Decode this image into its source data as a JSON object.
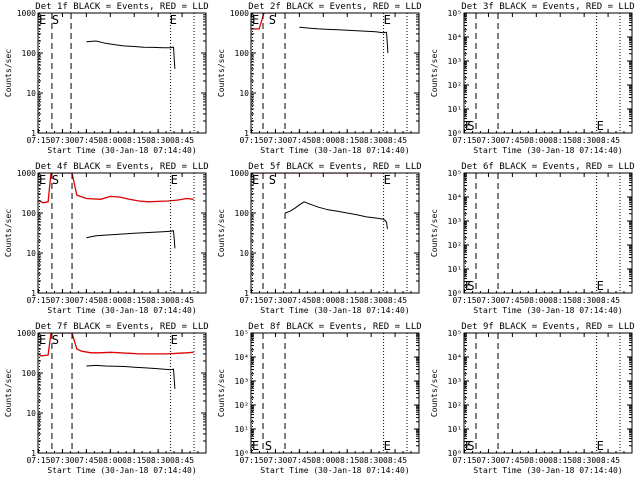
{
  "figure": {
    "background": "#ffffff",
    "events_color": "#000000",
    "lld_color": "#e00000"
  },
  "chart_data": [
    {
      "type": "line",
      "title": "Det 1f BLACK = Events, RED = LLD",
      "xlabel": "Start Time (30-Jan-18 07:14:40)",
      "ylabel": "Counts/sec",
      "xlim": [
        7.2444,
        9.0
      ],
      "ylim": [
        1,
        1000
      ],
      "yscale": "log",
      "xticks": [
        "07:15",
        "07:30",
        "07:45",
        "08:00",
        "08:15",
        "08:30",
        "08:45"
      ],
      "yticks": [
        "1",
        "10",
        "100",
        "1000"
      ],
      "ytick_values": [
        1,
        10,
        100,
        1000
      ],
      "marker_labels": [
        "E",
        "S",
        "E"
      ],
      "marker_x": [
        7.255,
        7.39,
        8.62
      ],
      "dashed_lines": [
        7.39,
        7.59
      ],
      "dotted_lines": [
        7.26,
        8.63,
        8.875
      ],
      "series": [
        {
          "name": "Events",
          "color": "#000000",
          "x": [
            7.75,
            7.85,
            7.95,
            8.05,
            8.15,
            8.25,
            8.35,
            8.45,
            8.55,
            8.63,
            8.66,
            8.67,
            8.675
          ],
          "y": [
            190,
            200,
            175,
            160,
            150,
            145,
            140,
            138,
            135,
            135,
            140,
            60,
            40
          ]
        }
      ]
    },
    {
      "type": "line",
      "title": "Det 2f BLACK = Events, RED = LLD",
      "xlabel": "Start Time (30-Jan-18 07:14:40)",
      "ylabel": "Counts/sec",
      "xlim": [
        7.2444,
        9.0
      ],
      "ylim": [
        1,
        1000
      ],
      "yscale": "log",
      "xticks": [
        "07:15",
        "07:30",
        "07:45",
        "08:00",
        "08:15",
        "08:30",
        "08:45"
      ],
      "yticks": [
        "1",
        "10",
        "100",
        "1000"
      ],
      "ytick_values": [
        1,
        10,
        100,
        1000
      ],
      "marker_labels": [
        "E",
        "S",
        "E"
      ],
      "marker_x": [
        7.255,
        7.43,
        8.63
      ],
      "dashed_lines": [
        7.37,
        7.6
      ],
      "dotted_lines": [
        7.26,
        8.63,
        8.875
      ],
      "series": [
        {
          "name": "LLD",
          "color": "#e00000",
          "x": [
            7.26,
            7.33,
            7.38,
            7.39,
            7.42,
            7.47,
            7.49,
            7.55,
            7.7,
            7.9,
            8.1,
            8.3,
            8.5,
            8.7,
            8.87
          ],
          "y": [
            400,
            400,
            1000,
            1000,
            1000,
            1000,
            1200,
            1250,
            1300,
            1250,
            1250,
            1200,
            1200,
            1200,
            1250
          ]
        },
        {
          "name": "Events",
          "color": "#000000",
          "x": [
            7.75,
            7.85,
            7.95,
            8.05,
            8.15,
            8.25,
            8.35,
            8.45,
            8.55,
            8.63,
            8.66,
            8.67,
            8.675
          ],
          "y": [
            440,
            420,
            400,
            390,
            380,
            370,
            360,
            350,
            340,
            320,
            330,
            160,
            100
          ]
        }
      ]
    },
    {
      "type": "line",
      "title": "Det 3f BLACK = Events, RED = LLD",
      "xlabel": "Start Time (30-Jan-18 07:14:40)",
      "ylabel": "Counts/sec",
      "xlim": [
        7.2444,
        9.0
      ],
      "ylim": [
        1,
        100000
      ],
      "yscale": "log",
      "xticks": [
        "07:15",
        "07:30",
        "07:45",
        "08:00",
        "08:15",
        "08:30",
        "08:45"
      ],
      "yticks": [
        "10⁰",
        "10¹",
        "10²",
        "10³",
        "10⁴",
        "10⁵"
      ],
      "ytick_values": [
        1,
        10,
        100,
        1000,
        10000,
        100000
      ],
      "marker_labels": [
        "E",
        "S",
        "E"
      ],
      "marker_x": [
        7.255,
        7.28,
        8.63
      ],
      "dashed_lines": [
        7.37,
        7.6
      ],
      "dotted_lines": [
        7.26,
        8.63,
        8.875
      ],
      "series": []
    },
    {
      "type": "line",
      "title": "Det 4f BLACK = Events, RED = LLD",
      "xlabel": "Start Time (30-Jan-18 07:14:40)",
      "ylabel": "Counts/sec",
      "xlim": [
        7.2444,
        9.0
      ],
      "ylim": [
        1,
        1000
      ],
      "yscale": "log",
      "xticks": [
        "07:15",
        "07:30",
        "07:45",
        "08:00",
        "08:15",
        "08:30",
        "08:45"
      ],
      "yticks": [
        "1",
        "10",
        "100",
        "1000"
      ],
      "ytick_values": [
        1,
        10,
        100,
        1000
      ],
      "marker_labels": [
        "E",
        "S",
        "E"
      ],
      "marker_x": [
        7.255,
        7.39,
        8.63
      ],
      "dashed_lines": [
        7.39,
        7.6
      ],
      "dotted_lines": [
        7.26,
        8.63,
        8.875
      ],
      "series": [
        {
          "name": "LLD",
          "color": "#e00000",
          "x": [
            7.26,
            7.3,
            7.35,
            7.38,
            7.4,
            7.45,
            7.55,
            7.6,
            7.65,
            7.75,
            7.9,
            8.0,
            8.1,
            8.2,
            8.3,
            8.4,
            8.5,
            8.6,
            8.7,
            8.8,
            8.87
          ],
          "y": [
            200,
            180,
            190,
            1000,
            1000,
            1000,
            1000,
            1000,
            280,
            230,
            220,
            260,
            250,
            220,
            200,
            190,
            195,
            200,
            210,
            230,
            220
          ]
        },
        {
          "name": "Events",
          "color": "#000000",
          "x": [
            7.75,
            7.85,
            7.95,
            8.05,
            8.15,
            8.25,
            8.35,
            8.45,
            8.55,
            8.63,
            8.66,
            8.67,
            8.675
          ],
          "y": [
            24,
            27,
            28,
            29,
            30,
            31,
            32,
            33,
            34,
            35,
            36,
            20,
            13
          ]
        }
      ]
    },
    {
      "type": "line",
      "title": "Det 5f BLACK = Events, RED = LLD",
      "xlabel": "Start Time (30-Jan-18 07:14:40)",
      "ylabel": "Counts/sec",
      "xlim": [
        7.2444,
        9.0
      ],
      "ylim": [
        1,
        1000
      ],
      "yscale": "log",
      "xticks": [
        "07:15",
        "07:30",
        "07:45",
        "08:00",
        "08:15",
        "08:30",
        "08:45"
      ],
      "yticks": [
        "1",
        "10",
        "100",
        "1000"
      ],
      "ytick_values": [
        1,
        10,
        100,
        1000
      ],
      "marker_labels": [
        "E",
        "S",
        "E"
      ],
      "marker_x": [
        7.255,
        7.43,
        8.63
      ],
      "dashed_lines": [
        7.37,
        7.6
      ],
      "dotted_lines": [
        7.26,
        8.63,
        8.875
      ],
      "series": [
        {
          "name": "LLD",
          "color": "#e00000",
          "x": [
            7.26,
            7.5,
            7.75,
            8.0,
            8.25,
            8.5,
            8.7,
            8.87
          ],
          "y": [
            1000,
            1000,
            1000,
            1000,
            1000,
            1000,
            1000,
            1100
          ]
        },
        {
          "name": "Events",
          "color": "#000000",
          "x": [
            7.6,
            7.65,
            7.7,
            7.75,
            7.8,
            7.85,
            7.95,
            8.05,
            8.15,
            8.25,
            8.35,
            8.45,
            8.55,
            8.63,
            8.66,
            8.67
          ],
          "y": [
            100,
            110,
            130,
            160,
            190,
            170,
            140,
            120,
            110,
            100,
            90,
            80,
            75,
            70,
            60,
            40
          ]
        }
      ]
    },
    {
      "type": "line",
      "title": "Det 6f BLACK = Events, RED = LLD",
      "xlabel": "Start Time (30-Jan-18 07:14:40)",
      "ylabel": "Counts/sec",
      "xlim": [
        7.2444,
        9.0
      ],
      "ylim": [
        1,
        100000
      ],
      "yscale": "log",
      "xticks": [
        "07:15",
        "07:30",
        "07:45",
        "08:00",
        "08:15",
        "08:30",
        "08:45"
      ],
      "yticks": [
        "10⁰",
        "10¹",
        "10²",
        "10³",
        "10⁴",
        "10⁵"
      ],
      "ytick_values": [
        1,
        10,
        100,
        1000,
        10000,
        100000
      ],
      "marker_labels": [
        "E",
        "S",
        "E"
      ],
      "marker_x": [
        7.255,
        7.28,
        8.63
      ],
      "dashed_lines": [
        7.37,
        7.6
      ],
      "dotted_lines": [
        7.26,
        8.63,
        8.875
      ],
      "series": []
    },
    {
      "type": "line",
      "title": "Det 7f BLACK = Events, RED = LLD",
      "xlabel": "Start Time (30-Jan-18 07:14:40)",
      "ylabel": "Counts/sec",
      "xlim": [
        7.2444,
        9.0
      ],
      "ylim": [
        1,
        1000
      ],
      "yscale": "log",
      "xticks": [
        "07:15",
        "07:30",
        "07:45",
        "08:00",
        "08:15",
        "08:30",
        "08:45"
      ],
      "yticks": [
        "1",
        "10",
        "100",
        "1000"
      ],
      "ytick_values": [
        1,
        10,
        100,
        1000
      ],
      "marker_labels": [
        "E",
        "S",
        "E"
      ],
      "marker_x": [
        7.255,
        7.39,
        8.63
      ],
      "dashed_lines": [
        7.39,
        7.6
      ],
      "dotted_lines": [
        7.26,
        8.63,
        8.875
      ],
      "series": [
        {
          "name": "LLD",
          "color": "#e00000",
          "x": [
            7.26,
            7.3,
            7.35,
            7.38,
            7.4,
            7.45,
            7.55,
            7.6,
            7.65,
            7.7,
            7.8,
            7.9,
            8.0,
            8.1,
            8.2,
            8.3,
            8.4,
            8.5,
            8.6,
            8.7,
            8.8,
            8.87
          ],
          "y": [
            270,
            270,
            280,
            1000,
            1000,
            1000,
            1000,
            1000,
            400,
            350,
            320,
            320,
            330,
            320,
            310,
            300,
            300,
            300,
            300,
            310,
            320,
            330
          ]
        },
        {
          "name": "Events",
          "color": "#000000",
          "x": [
            7.75,
            7.85,
            7.95,
            8.05,
            8.15,
            8.25,
            8.35,
            8.45,
            8.55,
            8.63,
            8.66,
            8.67,
            8.675
          ],
          "y": [
            150,
            155,
            150,
            148,
            145,
            140,
            135,
            130,
            125,
            120,
            125,
            60,
            40
          ]
        }
      ]
    },
    {
      "type": "line",
      "title": "Det 8f BLACK = Events, RED = LLD",
      "xlabel": "Start Time (30-Jan-18 07:14:40)",
      "ylabel": "Counts/sec",
      "xlim": [
        7.2444,
        9.0
      ],
      "ylim": [
        1,
        100000
      ],
      "yscale": "log",
      "xticks": [
        "07:15",
        "07:30",
        "07:45",
        "08:00",
        "08:15",
        "08:30",
        "08:45"
      ],
      "yticks": [
        "10⁰",
        "10¹",
        "10²",
        "10³",
        "10⁴",
        "10⁵"
      ],
      "ytick_values": [
        1,
        10,
        100,
        1000,
        10000,
        100000
      ],
      "marker_labels": [
        "E",
        "S",
        "E"
      ],
      "marker_x": [
        7.255,
        7.39,
        8.63
      ],
      "dashed_lines": [
        7.37,
        7.6
      ],
      "dotted_lines": [
        7.26,
        8.63,
        8.875
      ],
      "series": []
    },
    {
      "type": "line",
      "title": "Det 9f BLACK = Events, RED = LLD",
      "xlabel": "Start Time (30-Jan-18 07:14:40)",
      "ylabel": "Counts/sec",
      "xlim": [
        7.2444,
        9.0
      ],
      "ylim": [
        1,
        100000
      ],
      "yscale": "log",
      "xticks": [
        "07:15",
        "07:30",
        "07:45",
        "08:00",
        "08:15",
        "08:30",
        "08:45"
      ],
      "yticks": [
        "10⁰",
        "10¹",
        "10²",
        "10³",
        "10⁴",
        "10⁵"
      ],
      "ytick_values": [
        1,
        10,
        100,
        1000,
        10000,
        100000
      ],
      "marker_labels": [
        "E",
        "S",
        "E"
      ],
      "marker_x": [
        7.255,
        7.28,
        8.63
      ],
      "dashed_lines": [
        7.37,
        7.6
      ],
      "dotted_lines": [
        7.26,
        8.63,
        8.875
      ],
      "series": []
    }
  ]
}
